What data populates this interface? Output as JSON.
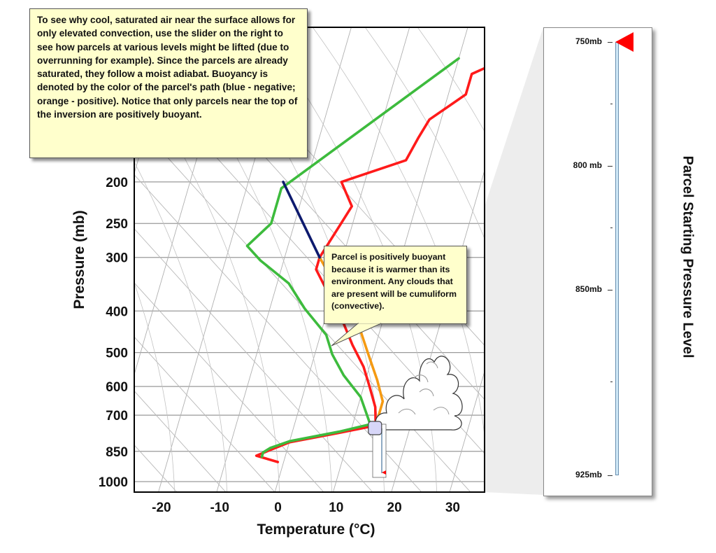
{
  "intro_text": "To see why cool, saturated air near the surface allows for only elevated convection, use the slider on the right to see how parcels at various levels might be lifted (due to overrunning for example). Since the parcels are already saturated, they follow a moist adiabat.  Buoyancy is denoted by the color of the parcel's path (blue - negative; orange - positive).  Notice that only parcels near the top of the inversion are positively buoyant.",
  "buoyancy_note": "Parcel is positively buoyant because it is warmer than its environment.  Any clouds that are present will be cumuliform (convective).",
  "slider": {
    "title": "Parcel Starting Pressure Level",
    "labels": [
      {
        "text": "750mb",
        "pressure": 750
      },
      {
        "text": "800 mb",
        "pressure": 800
      },
      {
        "text": "850mb",
        "pressure": 850
      },
      {
        "text": "925mb",
        "pressure": 925
      }
    ],
    "minor_ticks": [
      775,
      825,
      887
    ],
    "min": 750,
    "max": 925,
    "current": 750,
    "thumb_color": "#ff0000"
  },
  "chart_data": {
    "type": "line",
    "title": "",
    "xlabel": "Temperature (°C)",
    "ylabel": "Pressure (mb)",
    "xlim": [
      -25,
      35
    ],
    "x_ticks": [
      -20,
      -10,
      0,
      10,
      20,
      30
    ],
    "y_ticks": [
      200,
      250,
      300,
      400,
      500,
      600,
      700,
      850,
      1000
    ],
    "grid": true,
    "series": [
      {
        "color": "#ff1a1a",
        "points": [
          [
            20,
            100
          ],
          [
            13,
            112
          ],
          [
            13,
            125
          ],
          [
            8,
            143
          ],
          [
            7,
            158
          ],
          [
            6,
            178
          ],
          [
            -4,
            200
          ],
          [
            -1,
            228
          ],
          [
            -2,
            250
          ],
          [
            -4,
            300
          ],
          [
            -4,
            320
          ],
          [
            -1,
            360
          ],
          [
            3,
            420
          ],
          [
            6,
            480
          ],
          [
            9,
            540
          ],
          [
            11,
            600
          ],
          [
            13,
            670
          ],
          [
            14,
            740
          ],
          [
            8,
            770
          ],
          [
            0,
            810
          ],
          [
            -3,
            845
          ],
          [
            -5,
            870
          ],
          [
            -1,
            900
          ]
        ]
      },
      {
        "color": "#3dbb3d",
        "points": [
          [
            10,
            103
          ],
          [
            -14,
            207
          ],
          [
            -14,
            250
          ],
          [
            -17,
            282
          ],
          [
            -14,
            305
          ],
          [
            -8,
            345
          ],
          [
            -4,
            395
          ],
          [
            1,
            455
          ],
          [
            3,
            505
          ],
          [
            6,
            565
          ],
          [
            10,
            635
          ],
          [
            13,
            735
          ],
          [
            8,
            765
          ],
          [
            0,
            805
          ],
          [
            -3,
            835
          ],
          [
            -4,
            855
          ],
          [
            -4,
            875
          ]
        ]
      },
      {
        "color": "#f59a12",
        "points": [
          [
            -4,
            300
          ],
          [
            1,
            360
          ],
          [
            6,
            430
          ],
          [
            9,
            500
          ],
          [
            12,
            580
          ],
          [
            14,
            650
          ],
          [
            14,
            735
          ]
        ]
      },
      {
        "color": "#0d1a6e",
        "points": [
          [
            -14,
            200
          ],
          [
            -4,
            300
          ]
        ]
      }
    ],
    "parcel_start": {
      "x": 14,
      "p": 750
    }
  }
}
